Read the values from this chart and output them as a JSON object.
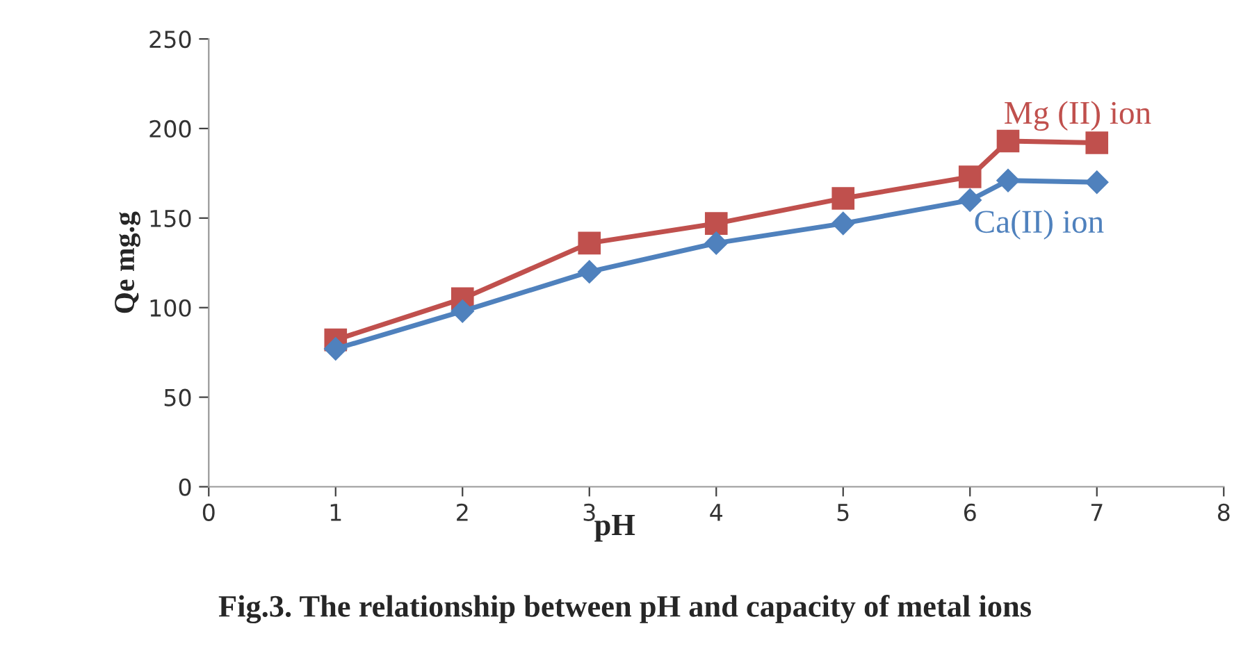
{
  "chart_data": {
    "type": "line",
    "title": "Fig.3. The relationship between pH and capacity of metal ions",
    "xlabel": "pH",
    "ylabel": "Qe mg.g",
    "series": [
      {
        "name": "Mg (II) ion",
        "color": "#c0504d",
        "marker": "square",
        "x": [
          1,
          2,
          3,
          4,
          5,
          6,
          6.3,
          7
        ],
        "values": [
          82,
          105,
          136,
          147,
          161,
          173,
          193,
          192
        ]
      },
      {
        "name": "Ca(II) ion",
        "color": "#4f81bd",
        "marker": "diamond",
        "x": [
          1,
          2,
          3,
          4,
          5,
          6,
          6.3,
          7
        ],
        "values": [
          77,
          98,
          120,
          136,
          147,
          160,
          171,
          170
        ]
      }
    ],
    "xlim": [
      0,
      8
    ],
    "xticks": [
      0,
      1,
      2,
      3,
      4,
      5,
      6,
      7,
      8
    ],
    "ylim": [
      0,
      250
    ],
    "yticks": [
      0,
      50,
      100,
      150,
      200,
      250
    ],
    "grid": false,
    "legend": false
  }
}
